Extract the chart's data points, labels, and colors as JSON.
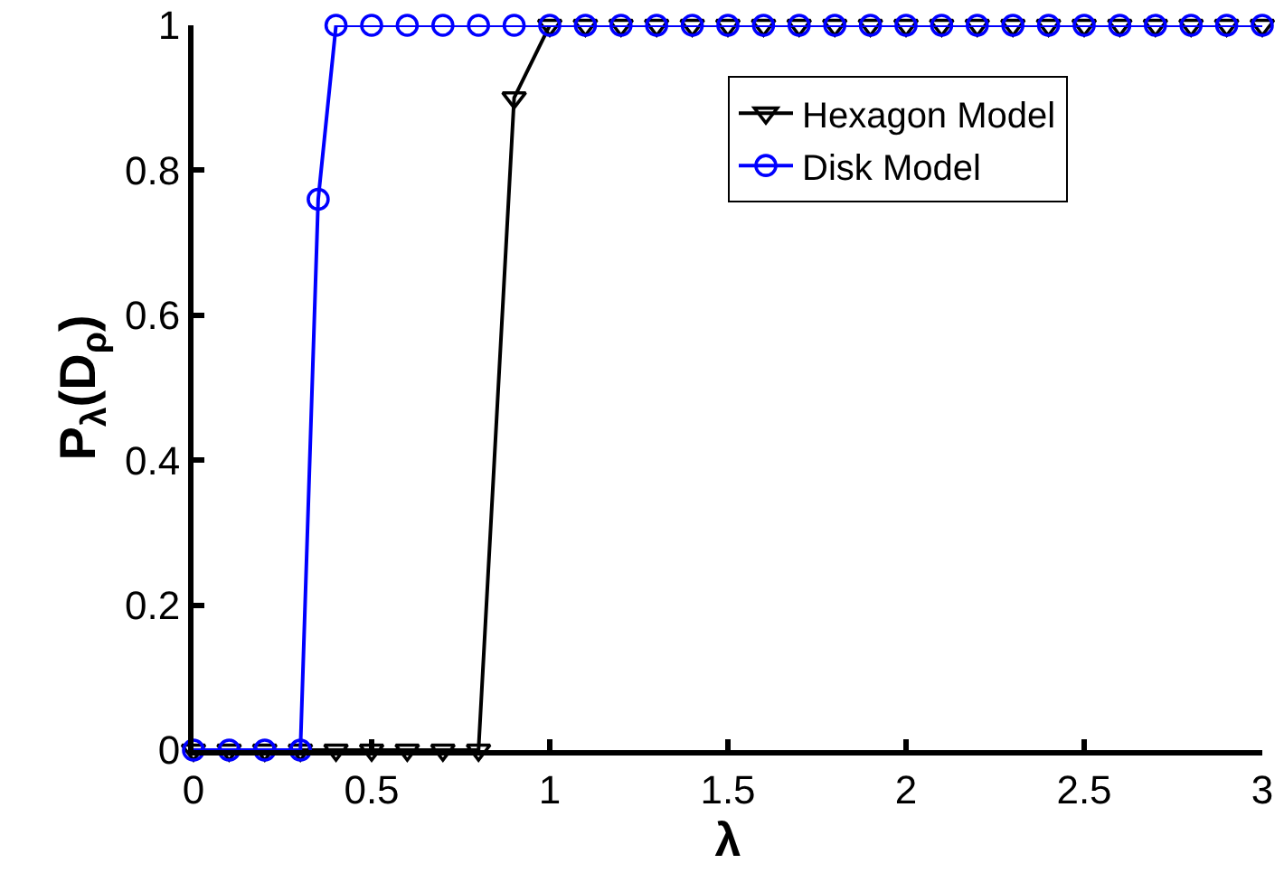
{
  "chart_data": {
    "type": "line",
    "xlabel": "λ",
    "ylabel": "P$_{λ}$(D$_{ρ}$)",
    "xlim": [
      0,
      3
    ],
    "xticks": [
      0,
      0.5,
      1,
      1.5,
      2,
      2.5,
      3
    ],
    "ylim": [
      0,
      1
    ],
    "yticks": [
      0,
      0.2,
      0.4,
      0.6,
      0.8,
      1
    ],
    "grid": false,
    "legend": "top right",
    "line_style": "solid",
    "series": [
      {
        "name": "Hexagon Model",
        "color": "#000000",
        "marker": "triangle",
        "x": [
          0,
          0.1,
          0.2,
          0.3,
          0.4,
          0.5,
          0.6,
          0.7,
          0.8,
          0.9,
          1,
          1.1,
          1.2,
          1.3,
          1.4,
          1.5,
          1.6,
          1.7,
          1.8,
          1.9,
          2,
          2.1,
          2.2,
          2.3,
          2.4,
          2.5,
          2.6,
          2.7,
          2.8,
          2.9,
          3
        ],
        "values": [
          0,
          0,
          0,
          0,
          0,
          0,
          0,
          0,
          0,
          0.9,
          1,
          1,
          1,
          1,
          1,
          1,
          1,
          1,
          1,
          1,
          1,
          1,
          1,
          1,
          1,
          1,
          1,
          1,
          1,
          1,
          1
        ]
      },
      {
        "name": "Disk Model",
        "color": "#0000ff",
        "marker": "circle",
        "x": [
          0,
          0.1,
          0.2,
          0.3,
          0.35,
          0.4,
          0.5,
          0.6,
          0.7,
          0.8,
          0.9,
          1,
          1.1,
          1.2,
          1.3,
          1.4,
          1.5,
          1.6,
          1.7,
          1.8,
          1.9,
          2,
          2.1,
          2.2,
          2.3,
          2.4,
          2.5,
          2.6,
          2.7,
          2.8,
          2.9,
          3
        ],
        "values": [
          0,
          0,
          0,
          0,
          0.76,
          1,
          1,
          1,
          1,
          1,
          1,
          1,
          1,
          1,
          1,
          1,
          1,
          1,
          1,
          1,
          1,
          1,
          1,
          1,
          1,
          1,
          1,
          1,
          1,
          1,
          1,
          1
        ]
      }
    ]
  }
}
